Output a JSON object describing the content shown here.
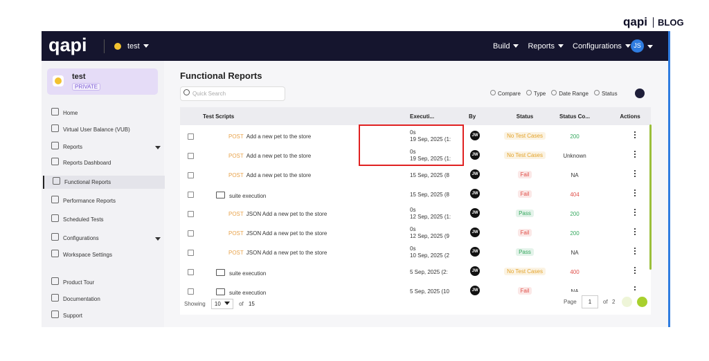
{
  "brand": {
    "logo": "qapi",
    "blog": "BLOG"
  },
  "navbar": {
    "logo": "qapi",
    "workspace": "test",
    "menu": [
      "Build",
      "Reports",
      "Configurations"
    ],
    "avatar": "JS"
  },
  "sidebar": {
    "workspace_name": "test",
    "workspace_badge": "PRIVATE",
    "items": [
      {
        "label": "Home"
      },
      {
        "label": "Virtual User Balance (VUB)"
      },
      {
        "label": "Reports",
        "has_menu": true
      },
      {
        "label": "Reports Dashboard"
      },
      {
        "label": "Functional Reports",
        "active": true
      },
      {
        "label": "Performance Reports"
      },
      {
        "label": "Scheduled Tests"
      },
      {
        "label": "Configurations",
        "has_menu": true
      },
      {
        "label": "Workspace Settings"
      }
    ],
    "footer_items": [
      "Product Tour",
      "Documentation",
      "Support"
    ]
  },
  "page": {
    "title": "Functional Reports",
    "search_placeholder": "Quick Search",
    "filters": [
      "Compare",
      "Type",
      "Date Range",
      "Status"
    ]
  },
  "table": {
    "headers": [
      "Test Scripts",
      "Executi...",
      "By",
      "Status",
      "Status Co...",
      "Actions"
    ],
    "rows": [
      {
        "method": "POST",
        "name": "Add a new pet to the store",
        "duration": "0s",
        "date": "19 Sep, 2025 (1:",
        "by": "JW",
        "status": "No Test Cases",
        "status_color": "#e3a32a",
        "code": "200",
        "code_color": "#35a85e"
      },
      {
        "method": "POST",
        "name": "Add a new pet to the store",
        "duration": "0s",
        "date": "19 Sep, 2025 (1:",
        "by": "JW",
        "status": "No Test Cases",
        "status_color": "#e3a32a",
        "code": "Unknown",
        "code_color": "#333333"
      },
      {
        "method": "POST",
        "name": "Add a new pet to the store",
        "date": "15 Sep, 2025 (8",
        "by": "JW",
        "status": "Fail",
        "status_color": "#e0504a",
        "code": "NA",
        "code_color": "#333333"
      },
      {
        "name": "suite execution",
        "date": "15 Sep, 2025 (8",
        "by": "JW",
        "status": "Fail",
        "status_color": "#e0504a",
        "code": "404",
        "code_color": "#e0504a"
      },
      {
        "method": "POST",
        "name": "JSON Add a new pet to the store",
        "duration": "0s",
        "date": "12 Sep, 2025 (1:",
        "by": "JW",
        "status": "Pass",
        "status_color": "#35a85e",
        "code": "200",
        "code_color": "#35a85e"
      },
      {
        "method": "POST",
        "name": "JSON Add a new pet to the store",
        "duration": "0s",
        "date": "12 Sep, 2025 (9",
        "by": "JW",
        "status": "Fail",
        "status_color": "#e0504a",
        "code": "200",
        "code_color": "#35a85e"
      },
      {
        "method": "POST",
        "name": "JSON Add a new pet to the store",
        "duration": "0s",
        "date": "10 Sep, 2025 (2",
        "by": "JW",
        "status": "Pass",
        "status_color": "#35a85e",
        "code": "NA",
        "code_color": "#333333"
      },
      {
        "name": "suite execution",
        "date": "5 Sep, 2025 (2:",
        "by": "JW",
        "status": "No Test Cases",
        "status_color": "#e3a32a",
        "code": "400",
        "code_color": "#e0504a"
      },
      {
        "name": "suite execution",
        "date": "5 Sep, 2025 (10",
        "by": "JW",
        "status": "Fail",
        "status_color": "#e0504a",
        "code": "NA",
        "code_color": "#333333"
      }
    ]
  },
  "footer": {
    "showing": "Showing",
    "page_size": "10",
    "of": "of",
    "total": "15",
    "page_label": "Page",
    "page": "1",
    "page_of": "of",
    "pages": "2"
  }
}
